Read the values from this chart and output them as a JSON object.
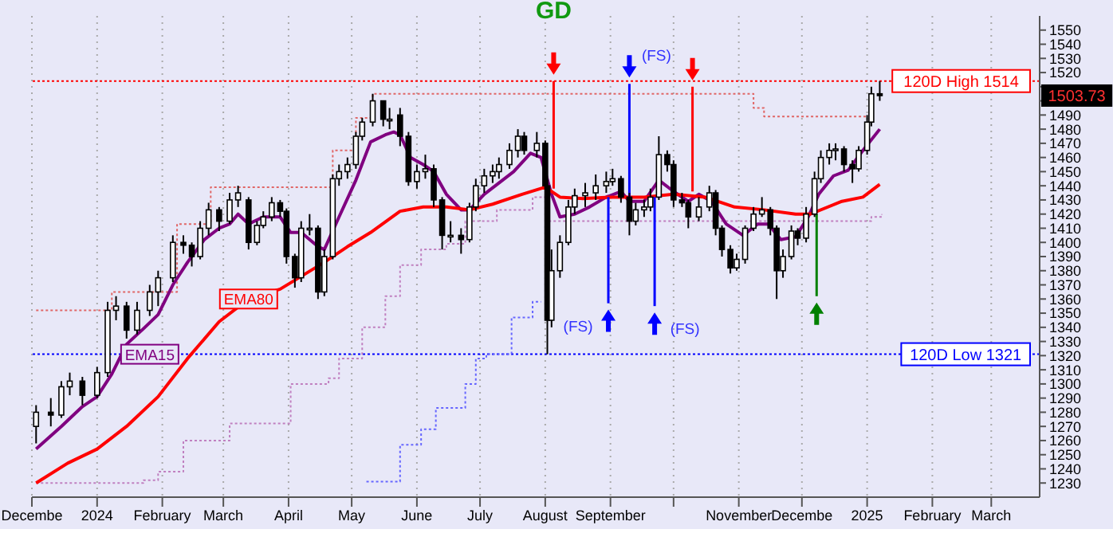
{
  "chart_data": {
    "type": "candlestick",
    "color": "#000000",
    "x": [
      "2023-12-03",
      "2023-12-10",
      "2023-12-15",
      "2023-12-19",
      "2023-12-25",
      "2024-01-01",
      "2024-01-06",
      "2024-01-10",
      "2024-01-15",
      "2024-01-20",
      "2024-01-26",
      "2024-01-30",
      "2024-02-06",
      "2024-02-11",
      "2024-02-15",
      "2024-02-19",
      "2024-02-23",
      "2024-02-28",
      "2024-03-04",
      "2024-03-08",
      "2024-03-13",
      "2024-03-17",
      "2024-03-20",
      "2024-03-24",
      "2024-03-28",
      "2024-03-31",
      "2024-04-04",
      "2024-04-07",
      "2024-04-11",
      "2024-04-15",
      "2024-04-18",
      "2024-04-22",
      "2024-04-25",
      "2024-04-29",
      "2024-05-03",
      "2024-05-06",
      "2024-05-11",
      "2024-05-16",
      "2024-05-19",
      "2024-05-24",
      "2024-05-28",
      "2024-06-01",
      "2024-06-05",
      "2024-06-09",
      "2024-06-13",
      "2024-06-17",
      "2024-06-22",
      "2024-06-26",
      "2024-06-29",
      "2024-07-03",
      "2024-07-07",
      "2024-07-10",
      "2024-07-15",
      "2024-07-19",
      "2024-07-22",
      "2024-07-28",
      "2024-08-01",
      "2024-08-02",
      "2024-08-04",
      "2024-08-08",
      "2024-08-12",
      "2024-08-15",
      "2024-08-20",
      "2024-08-25",
      "2024-08-30",
      "2024-09-02",
      "2024-09-06",
      "2024-09-10",
      "2024-09-13",
      "2024-09-17",
      "2024-09-20",
      "2024-09-24",
      "2024-09-28",
      "2024-10-01",
      "2024-10-05",
      "2024-10-08",
      "2024-10-13",
      "2024-10-18",
      "2024-10-21",
      "2024-10-24",
      "2024-10-28",
      "2024-10-31",
      "2024-11-04",
      "2024-11-08",
      "2024-11-12",
      "2024-11-16",
      "2024-11-19",
      "2024-11-22",
      "2024-11-26",
      "2024-11-29",
      "2024-12-03",
      "2024-12-07",
      "2024-12-10",
      "2024-12-14",
      "2024-12-17",
      "2024-12-21",
      "2024-12-25",
      "2024-12-28",
      "2025-01-01",
      "2025-01-03",
      "2025-01-07"
    ],
    "ohlc": [
      [
        1270,
        1285,
        1258,
        1280
      ],
      [
        1280,
        1290,
        1270,
        1278
      ],
      [
        1278,
        1302,
        1276,
        1298
      ],
      [
        1298,
        1308,
        1292,
        1302
      ],
      [
        1302,
        1305,
        1285,
        1292
      ],
      [
        1292,
        1312,
        1290,
        1308
      ],
      [
        1308,
        1358,
        1305,
        1352
      ],
      [
        1352,
        1362,
        1345,
        1355
      ],
      [
        1355,
        1358,
        1332,
        1338
      ],
      [
        1338,
        1358,
        1335,
        1352
      ],
      [
        1352,
        1370,
        1348,
        1365
      ],
      [
        1365,
        1380,
        1355,
        1375
      ],
      [
        1375,
        1405,
        1372,
        1400
      ],
      [
        1400,
        1405,
        1392,
        1398
      ],
      [
        1398,
        1400,
        1383,
        1390
      ],
      [
        1390,
        1415,
        1388,
        1410
      ],
      [
        1410,
        1428,
        1405,
        1423
      ],
      [
        1423,
        1425,
        1408,
        1415
      ],
      [
        1415,
        1435,
        1413,
        1430
      ],
      [
        1430,
        1440,
        1425,
        1435
      ],
      [
        1430,
        1432,
        1395,
        1400
      ],
      [
        1400,
        1415,
        1398,
        1412
      ],
      [
        1412,
        1422,
        1410,
        1418
      ],
      [
        1418,
        1432,
        1415,
        1428
      ],
      [
        1428,
        1430,
        1418,
        1422
      ],
      [
        1422,
        1424,
        1385,
        1390
      ],
      [
        1390,
        1392,
        1368,
        1375
      ],
      [
        1375,
        1415,
        1372,
        1410
      ],
      [
        1410,
        1420,
        1405,
        1410
      ],
      [
        1410,
        1412,
        1360,
        1365
      ],
      [
        1365,
        1395,
        1362,
        1390
      ],
      [
        1390,
        1448,
        1388,
        1445
      ],
      [
        1445,
        1455,
        1440,
        1450
      ],
      [
        1450,
        1460,
        1445,
        1455
      ],
      [
        1455,
        1478,
        1452,
        1475
      ],
      [
        1475,
        1488,
        1472,
        1485
      ],
      [
        1485,
        1505,
        1482,
        1500
      ],
      [
        1500,
        1500,
        1482,
        1487
      ],
      [
        1487,
        1495,
        1480,
        1487
      ],
      [
        1490,
        1495,
        1468,
        1475
      ],
      [
        1475,
        1478,
        1440,
        1443
      ],
      [
        1443,
        1455,
        1438,
        1450
      ],
      [
        1450,
        1462,
        1445,
        1452
      ],
      [
        1452,
        1455,
        1425,
        1430
      ],
      [
        1430,
        1432,
        1395,
        1405
      ],
      [
        1405,
        1415,
        1400,
        1405
      ],
      [
        1405,
        1410,
        1392,
        1402
      ],
      [
        1402,
        1428,
        1400,
        1425
      ],
      [
        1425,
        1445,
        1422,
        1440
      ],
      [
        1440,
        1452,
        1435,
        1447
      ],
      [
        1447,
        1455,
        1442,
        1450
      ],
      [
        1450,
        1460,
        1445,
        1455
      ],
      [
        1455,
        1470,
        1452,
        1465
      ],
      [
        1465,
        1480,
        1460,
        1475
      ],
      [
        1475,
        1478,
        1462,
        1465
      ],
      [
        1465,
        1478,
        1460,
        1470
      ],
      [
        1470,
        1472,
        1438,
        1440
      ],
      [
        1440,
        1445,
        1321,
        1345
      ],
      [
        1345,
        1395,
        1340,
        1380
      ],
      [
        1380,
        1405,
        1375,
        1400
      ],
      [
        1400,
        1430,
        1398,
        1425
      ],
      [
        1425,
        1438,
        1420,
        1433
      ],
      [
        1433,
        1442,
        1425,
        1435
      ],
      [
        1435,
        1448,
        1430,
        1440
      ],
      [
        1440,
        1450,
        1435,
        1443
      ],
      [
        1443,
        1452,
        1440,
        1445
      ],
      [
        1445,
        1447,
        1428,
        1432
      ],
      [
        1432,
        1435,
        1405,
        1415
      ],
      [
        1415,
        1428,
        1412,
        1423
      ],
      [
        1423,
        1430,
        1418,
        1425
      ],
      [
        1425,
        1438,
        1422,
        1432
      ],
      [
        1432,
        1475,
        1430,
        1462
      ],
      [
        1462,
        1465,
        1450,
        1455
      ],
      [
        1455,
        1458,
        1425,
        1430
      ],
      [
        1430,
        1435,
        1425,
        1428
      ],
      [
        1428,
        1430,
        1410,
        1418
      ],
      [
        1418,
        1432,
        1415,
        1425
      ],
      [
        1425,
        1440,
        1422,
        1435
      ],
      [
        1435,
        1437,
        1405,
        1410
      ],
      [
        1410,
        1412,
        1390,
        1395
      ],
      [
        1395,
        1398,
        1378,
        1382
      ],
      [
        1382,
        1392,
        1380,
        1388
      ],
      [
        1388,
        1412,
        1385,
        1410
      ],
      [
        1410,
        1425,
        1408,
        1420
      ],
      [
        1420,
        1432,
        1418,
        1423
      ],
      [
        1423,
        1425,
        1405,
        1410
      ],
      [
        1410,
        1412,
        1360,
        1380
      ],
      [
        1380,
        1395,
        1375,
        1390
      ],
      [
        1390,
        1412,
        1388,
        1408
      ],
      [
        1408,
        1410,
        1398,
        1403
      ],
      [
        1403,
        1425,
        1400,
        1420
      ],
      [
        1420,
        1450,
        1418,
        1445
      ],
      [
        1445,
        1465,
        1442,
        1460
      ],
      [
        1460,
        1470,
        1455,
        1465
      ],
      [
        1465,
        1470,
        1458,
        1466
      ],
      [
        1466,
        1468,
        1450,
        1455
      ],
      [
        1455,
        1458,
        1442,
        1452
      ],
      [
        1452,
        1468,
        1450,
        1465
      ],
      [
        1465,
        1490,
        1462,
        1485
      ],
      [
        1485,
        1510,
        1482,
        1505
      ],
      [
        1505,
        1514,
        1500,
        1503.73
      ]
    ],
    "series": [
      {
        "type": "step",
        "color": "#e06666",
        "line_style": "dotted",
        "x": [
          "2023-12-03",
          "2024-01-08",
          "2024-02-08",
          "2024-02-24",
          "2024-04-22",
          "2024-05-03",
          "2024-05-11",
          "2024-11-08",
          "2024-11-13",
          "2025-01-01"
        ],
        "values": [
          1352,
          1365,
          1413,
          1439,
          1465,
          1488,
          1505,
          1495,
          1489,
          1489
        ]
      },
      {
        "type": "step",
        "color": "#c080c0",
        "line_style": "dotted",
        "x": [
          "2023-12-03",
          "2024-01-23",
          "2024-01-30",
          "2024-02-11",
          "2024-03-04",
          "2024-04-02",
          "2024-04-20",
          "2024-04-25",
          "2024-05-06",
          "2024-05-17",
          "2024-05-24",
          "2024-06-03",
          "2024-06-15",
          "2024-06-24",
          "2024-07-09",
          "2024-07-26",
          "2024-08-02",
          "2025-01-03",
          "2025-01-08"
        ],
        "values": [
          1230,
          1232,
          1238,
          1260,
          1272,
          1300,
          1304,
          1318,
          1340,
          1362,
          1384,
          1395,
          1399,
          1415,
          1423,
          1432,
          1415,
          1418,
          1420
        ]
      },
      {
        "type": "step",
        "color": "#6666ff",
        "line_style": "dotted",
        "x": [
          "2024-05-08",
          "2024-05-24",
          "2024-06-03",
          "2024-06-10",
          "2024-06-24",
          "2024-06-29",
          "2024-07-04",
          "2024-07-16",
          "2024-07-26",
          "2024-07-30"
        ],
        "values": [
          1231,
          1257,
          1268,
          1283,
          1300,
          1318,
          1321,
          1347,
          1358,
          1358
        ]
      },
      {
        "type": "line",
        "name": "EMA15",
        "color": "#800080",
        "line_style": "solid",
        "x": [
          "2023-12-03",
          "2023-12-15",
          "2023-12-25",
          "2024-01-01",
          "2024-01-08",
          "2024-01-15",
          "2024-01-23",
          "2024-01-30",
          "2024-02-06",
          "2024-02-13",
          "2024-02-21",
          "2024-02-28",
          "2024-03-04",
          "2024-03-08",
          "2024-03-13",
          "2024-03-20",
          "2024-03-28",
          "2024-04-02",
          "2024-04-07",
          "2024-04-15",
          "2024-04-18",
          "2024-04-25",
          "2024-05-03",
          "2024-05-10",
          "2024-05-17",
          "2024-05-21",
          "2024-05-24",
          "2024-05-29",
          "2024-06-04",
          "2024-06-09",
          "2024-06-15",
          "2024-06-22",
          "2024-06-26",
          "2024-07-03",
          "2024-07-10",
          "2024-07-17",
          "2024-07-25",
          "2024-07-30",
          "2024-08-04",
          "2024-08-08",
          "2024-08-15",
          "2024-08-22",
          "2024-08-30",
          "2024-09-06",
          "2024-09-10",
          "2024-09-17",
          "2024-09-24",
          "2024-10-01",
          "2024-10-08",
          "2024-10-13",
          "2024-10-19",
          "2024-10-26",
          "2024-11-03",
          "2024-11-10",
          "2024-11-15",
          "2024-11-21",
          "2024-11-28",
          "2024-12-04",
          "2024-12-09",
          "2024-12-16",
          "2024-12-23",
          "2024-12-30",
          "2025-01-07"
        ],
        "values": [
          1254,
          1270,
          1284,
          1291,
          1307,
          1328,
          1339,
          1349,
          1370,
          1386,
          1402,
          1410,
          1413,
          1420,
          1413,
          1418,
          1418,
          1407,
          1407,
          1397,
          1395,
          1418,
          1444,
          1471,
          1476,
          1478,
          1476,
          1460,
          1455,
          1450,
          1434,
          1423,
          1423,
          1434,
          1442,
          1450,
          1463,
          1460,
          1434,
          1418,
          1420,
          1425,
          1432,
          1436,
          1429,
          1429,
          1444,
          1436,
          1429,
          1434,
          1429,
          1413,
          1405,
          1413,
          1413,
          1402,
          1404,
          1418,
          1434,
          1447,
          1451,
          1465,
          1480
        ]
      },
      {
        "type": "line",
        "name": "EMA80",
        "color": "#ff0000",
        "line_style": "solid",
        "x": [
          "2023-12-03",
          "2023-12-18",
          "2024-01-01",
          "2024-01-15",
          "2024-01-30",
          "2024-02-13",
          "2024-02-28",
          "2024-03-13",
          "2024-03-28",
          "2024-04-07",
          "2024-04-18",
          "2024-04-29",
          "2024-05-10",
          "2024-05-24",
          "2024-06-04",
          "2024-06-15",
          "2024-06-26",
          "2024-07-07",
          "2024-07-21",
          "2024-08-01",
          "2024-08-08",
          "2024-08-19",
          "2024-09-02",
          "2024-09-17",
          "2024-10-01",
          "2024-10-16",
          "2024-10-30",
          "2024-11-13",
          "2024-11-28",
          "2024-12-05",
          "2024-12-20",
          "2024-12-30",
          "2025-01-07"
        ],
        "values": [
          1230,
          1244,
          1254,
          1270,
          1291,
          1318,
          1344,
          1360,
          1367,
          1376,
          1386,
          1397,
          1407,
          1422,
          1425,
          1425,
          1423,
          1427,
          1434,
          1439,
          1432,
          1431,
          1432,
          1432,
          1434,
          1432,
          1425,
          1423,
          1420,
          1420,
          1429,
          1432,
          1441
        ]
      },
      {
        "type": "line",
        "color": "#ff0000",
        "line_style": "solid",
        "x": [
          "2024-08-05",
          "2024-08-05"
        ],
        "values": [
          1514,
          1438
        ]
      },
      {
        "type": "line",
        "color": "#0000ff",
        "line_style": "solid",
        "x": [
          "2024-09-10",
          "2024-09-10"
        ],
        "values": [
          1512,
          1432
        ]
      },
      {
        "type": "line",
        "color": "#ff0000",
        "line_style": "solid",
        "x": [
          "2024-10-10",
          "2024-10-10"
        ],
        "values": [
          1510,
          1436
        ]
      },
      {
        "type": "line",
        "color": "#0000ff",
        "line_style": "solid",
        "x": [
          "2024-08-31",
          "2024-08-31"
        ],
        "values": [
          1357,
          1432
        ]
      },
      {
        "type": "line",
        "color": "#0000ff",
        "line_style": "solid",
        "x": [
          "2024-09-22",
          "2024-09-22"
        ],
        "values": [
          1355,
          1432
        ]
      },
      {
        "type": "line",
        "color": "#008000",
        "line_style": "solid",
        "x": [
          "2024-12-08",
          "2024-12-08"
        ],
        "values": [
          1362,
          1420
        ]
      }
    ],
    "xlim": [
      "2023-12-01",
      "2025-03-24"
    ],
    "xticks": [
      {
        "value": "2023-12-01",
        "label": "Decembe"
      },
      {
        "value": "2024-01-01",
        "label": "2024"
      },
      {
        "value": "2024-02-01",
        "label": "February"
      },
      {
        "value": "2024-03-01",
        "label": "March"
      },
      {
        "value": "2024-04-01",
        "label": "April"
      },
      {
        "value": "2024-05-01",
        "label": "May"
      },
      {
        "value": "2024-06-01",
        "label": "June"
      },
      {
        "value": "2024-07-01",
        "label": "July"
      },
      {
        "value": "2024-08-01",
        "label": "August"
      },
      {
        "value": "2024-09-01",
        "label": "September"
      },
      {
        "value": "2024-10-01",
        "label": null
      },
      {
        "value": "2024-11-01",
        "label": "November"
      },
      {
        "value": "2024-12-01",
        "label": "Decembe"
      },
      {
        "value": "2025-01-01",
        "label": "2025"
      },
      {
        "value": "2025-02-01",
        "label": "February"
      },
      {
        "value": "2025-03-01",
        "label": "March"
      }
    ],
    "ylim": [
      1220,
      1560
    ],
    "yticks": [
      1230,
      1240,
      1250,
      1260,
      1270,
      1280,
      1290,
      1300,
      1310,
      1320,
      1330,
      1340,
      1350,
      1360,
      1370,
      1380,
      1390,
      1400,
      1410,
      1420,
      1430,
      1440,
      1450,
      1460,
      1470,
      1480,
      1490,
      {
        "value": 1500,
        "label": null
      },
      {
        "value": 1510,
        "label": null
      },
      1520,
      1530,
      1540,
      1550
    ],
    "grid": "x",
    "ref_lines": [
      {
        "axis": "y",
        "value": 1514,
        "label": "120D High 1514",
        "color": "#ff0000",
        "line_style": "dotted"
      },
      {
        "axis": "y",
        "value": 1321,
        "label": "120D Low 1321",
        "color": "#0000ff",
        "line_style": "dotted"
      }
    ],
    "annotations": [
      "GD",
      "(FS)",
      "(FS)",
      "(FS)",
      "1503.73"
    ]
  }
}
